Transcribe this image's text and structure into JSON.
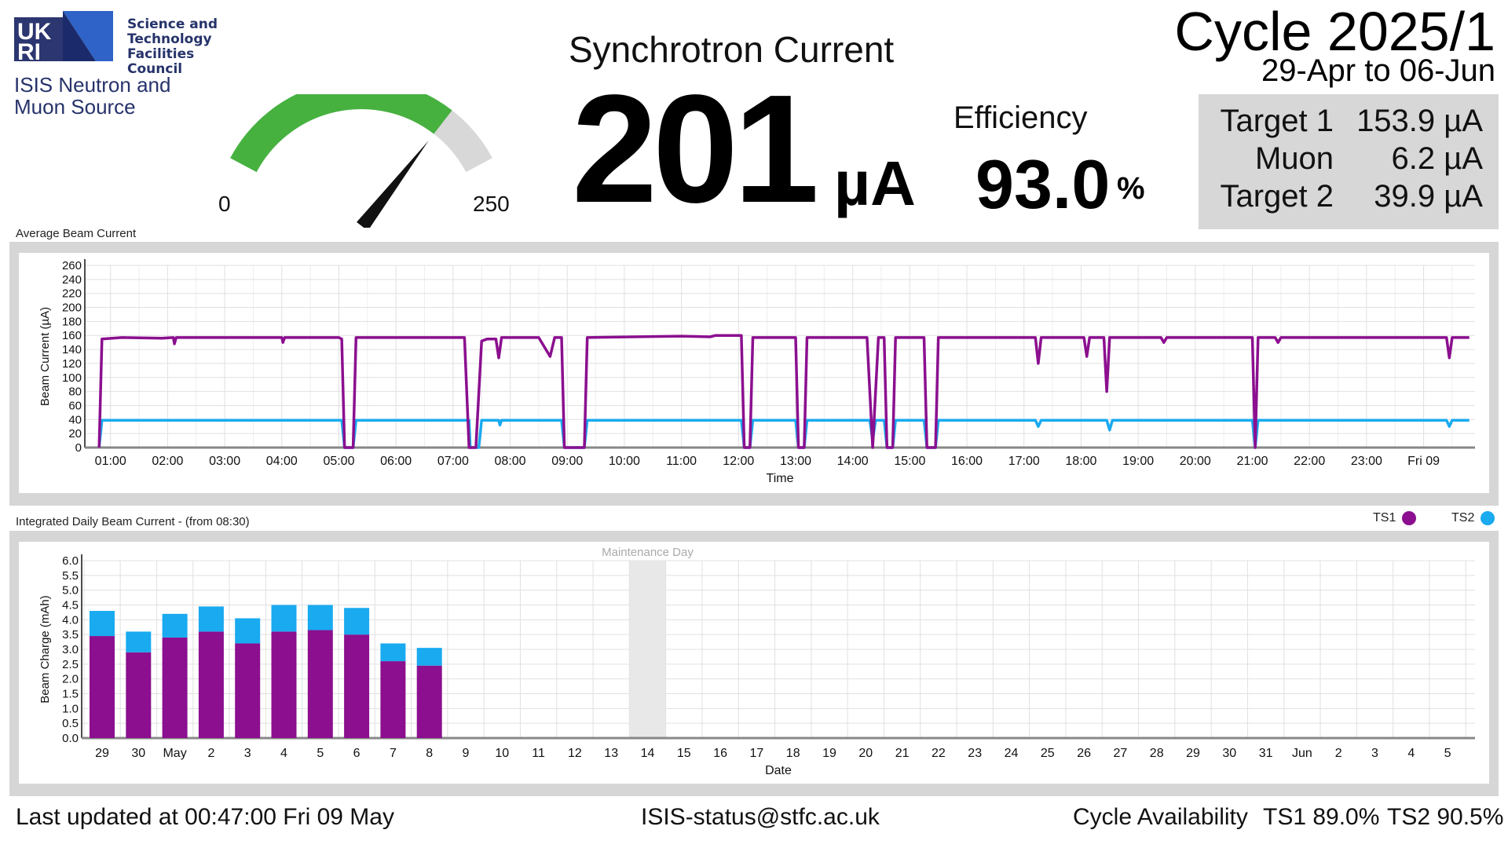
{
  "logo": {
    "ukri_letters": [
      "UK",
      "RI"
    ],
    "council_lines": [
      "Science and",
      "Technology",
      "Facilities Council"
    ],
    "source_lines": [
      "ISIS Neutron and",
      "Muon Source"
    ]
  },
  "gauge": {
    "min_label": "0",
    "max_label": "250",
    "min": 0,
    "max": 250,
    "value": 201,
    "fill_color": "#46b13f",
    "track_color": "#d8d8d8"
  },
  "synchrotron": {
    "title": "Synchrotron Current",
    "value": "201",
    "unit": "µA"
  },
  "efficiency": {
    "title": "Efficiency",
    "value": "93.0",
    "unit": "%"
  },
  "cycle": {
    "title": "Cycle 2025/1",
    "dates": "29-Apr to 06-Jun"
  },
  "targets": [
    {
      "name": "Target 1",
      "value": "153.9 µA"
    },
    {
      "name": "Muon",
      "value": "6.2 µA"
    },
    {
      "name": "Target 2",
      "value": "39.9 µA"
    }
  ],
  "average_chart": {
    "label": "Average Beam Current",
    "ylabel": "Beam Current (µA)",
    "xlabel": "Time",
    "yticks": [
      "0",
      "20",
      "40",
      "60",
      "80",
      "100",
      "120",
      "140",
      "160",
      "180",
      "200",
      "220",
      "240",
      "260"
    ],
    "xticks": [
      "01:00",
      "02:00",
      "03:00",
      "04:00",
      "05:00",
      "06:00",
      "07:00",
      "08:00",
      "09:00",
      "10:00",
      "11:00",
      "12:00",
      "13:00",
      "14:00",
      "15:00",
      "16:00",
      "17:00",
      "18:00",
      "19:00",
      "20:00",
      "21:00",
      "22:00",
      "23:00",
      "Fri 09"
    ]
  },
  "daily_chart": {
    "label": "Integrated Daily Beam Current - (from 08:30)",
    "ylabel": "Beam Charge (mAh)",
    "xlabel": "Date",
    "maintenance_label": "Maintenance Day",
    "yticks": [
      "0.0",
      "0.5",
      "1.0",
      "1.5",
      "2.0",
      "2.5",
      "3.0",
      "3.5",
      "4.0",
      "4.5",
      "5.0",
      "5.5",
      "6.0"
    ],
    "xticks": [
      "29",
      "30",
      "May",
      "2",
      "3",
      "4",
      "5",
      "6",
      "7",
      "8",
      "9",
      "10",
      "11",
      "12",
      "13",
      "14",
      "15",
      "16",
      "17",
      "18",
      "19",
      "20",
      "21",
      "22",
      "23",
      "24",
      "25",
      "26",
      "27",
      "28",
      "29",
      "30",
      "31",
      "Jun",
      "2",
      "3",
      "4",
      "5"
    ]
  },
  "legend": {
    "ts1": "TS1",
    "ts2": "TS2",
    "ts1_color": "#8b0f8f",
    "ts2_color": "#19aaf0"
  },
  "chart_data": [
    {
      "type": "line",
      "title": "Average Beam Current",
      "xlabel": "Time",
      "ylabel": "Beam Current (µA)",
      "ylim": [
        0,
        260
      ],
      "x_unit": "hours since 00:00 Thu 08 May",
      "series": [
        {
          "name": "TS1",
          "color": "#8b0f8f",
          "points": [
            [
              0.8,
              0
            ],
            [
              0.85,
              155
            ],
            [
              1.2,
              157
            ],
            [
              1.9,
              156
            ],
            [
              2.1,
              157
            ],
            [
              2.12,
              148
            ],
            [
              2.15,
              157
            ],
            [
              4.0,
              157
            ],
            [
              4.02,
              150
            ],
            [
              4.05,
              157
            ],
            [
              5.0,
              157
            ],
            [
              5.05,
              155
            ],
            [
              5.1,
              0
            ],
            [
              5.25,
              0
            ],
            [
              5.3,
              157
            ],
            [
              7.2,
              157
            ],
            [
              7.28,
              0
            ],
            [
              7.4,
              0
            ],
            [
              7.5,
              152
            ],
            [
              7.6,
              155
            ],
            [
              7.75,
              155
            ],
            [
              7.8,
              128
            ],
            [
              7.85,
              157
            ],
            [
              8.5,
              157
            ],
            [
              8.7,
              130
            ],
            [
              8.78,
              157
            ],
            [
              8.9,
              157
            ],
            [
              8.95,
              0
            ],
            [
              9.3,
              0
            ],
            [
              9.35,
              157
            ],
            [
              11.0,
              159
            ],
            [
              11.5,
              158
            ],
            [
              11.6,
              160
            ],
            [
              12.05,
              160
            ],
            [
              12.1,
              0
            ],
            [
              12.2,
              0
            ],
            [
              12.25,
              157
            ],
            [
              13.0,
              157
            ],
            [
              13.05,
              0
            ],
            [
              13.15,
              0
            ],
            [
              13.2,
              157
            ],
            [
              14.25,
              157
            ],
            [
              14.35,
              0
            ],
            [
              14.45,
              157
            ],
            [
              14.55,
              157
            ],
            [
              14.6,
              0
            ],
            [
              14.7,
              0
            ],
            [
              14.75,
              157
            ],
            [
              15.25,
              157
            ],
            [
              15.3,
              0
            ],
            [
              15.45,
              0
            ],
            [
              15.5,
              157
            ],
            [
              17.2,
              157
            ],
            [
              17.25,
              120
            ],
            [
              17.3,
              157
            ],
            [
              18.05,
              157
            ],
            [
              18.1,
              130
            ],
            [
              18.15,
              157
            ],
            [
              18.4,
              157
            ],
            [
              18.45,
              80
            ],
            [
              18.5,
              157
            ],
            [
              19.4,
              157
            ],
            [
              19.45,
              150
            ],
            [
              19.5,
              157
            ],
            [
              21.0,
              157
            ],
            [
              21.05,
              0
            ],
            [
              21.1,
              157
            ],
            [
              21.4,
              157
            ],
            [
              21.45,
              150
            ],
            [
              21.5,
              157
            ],
            [
              24.4,
              157
            ],
            [
              24.45,
              128
            ],
            [
              24.5,
              157
            ],
            [
              24.8,
              157
            ]
          ]
        },
        {
          "name": "TS2",
          "color": "#19aaf0",
          "points": [
            [
              0.8,
              0
            ],
            [
              0.85,
              39
            ],
            [
              5.05,
              39
            ],
            [
              5.1,
              0
            ],
            [
              5.25,
              0
            ],
            [
              5.3,
              39
            ],
            [
              7.28,
              39
            ],
            [
              7.3,
              0
            ],
            [
              7.45,
              0
            ],
            [
              7.5,
              39
            ],
            [
              7.8,
              39
            ],
            [
              7.82,
              32
            ],
            [
              7.85,
              39
            ],
            [
              8.9,
              39
            ],
            [
              8.95,
              0
            ],
            [
              9.3,
              0
            ],
            [
              9.35,
              39
            ],
            [
              12.05,
              39
            ],
            [
              12.1,
              0
            ],
            [
              12.2,
              0
            ],
            [
              12.25,
              39
            ],
            [
              13.0,
              39
            ],
            [
              13.05,
              0
            ],
            [
              13.15,
              0
            ],
            [
              13.2,
              39
            ],
            [
              14.3,
              39
            ],
            [
              14.35,
              10
            ],
            [
              14.4,
              39
            ],
            [
              14.55,
              39
            ],
            [
              14.6,
              0
            ],
            [
              14.7,
              0
            ],
            [
              14.75,
              39
            ],
            [
              15.25,
              39
            ],
            [
              15.3,
              0
            ],
            [
              15.45,
              0
            ],
            [
              15.5,
              39
            ],
            [
              17.2,
              39
            ],
            [
              17.25,
              30
            ],
            [
              17.3,
              39
            ],
            [
              18.45,
              39
            ],
            [
              18.5,
              25
            ],
            [
              18.55,
              39
            ],
            [
              21.0,
              39
            ],
            [
              21.05,
              0
            ],
            [
              21.1,
              39
            ],
            [
              24.4,
              39
            ],
            [
              24.45,
              30
            ],
            [
              24.5,
              39
            ],
            [
              24.8,
              39
            ]
          ]
        }
      ]
    },
    {
      "type": "bar",
      "stacked": true,
      "title": "Integrated Daily Beam Current - (from 08:30)",
      "xlabel": "Date",
      "ylabel": "Beam Charge (mAh)",
      "ylim": [
        0,
        6.0
      ],
      "categories": [
        "29",
        "30",
        "May",
        "2",
        "3",
        "4",
        "5",
        "6",
        "7",
        "8"
      ],
      "series": [
        {
          "name": "TS1",
          "color": "#8b0f8f",
          "values": [
            3.45,
            2.9,
            3.4,
            3.6,
            3.2,
            3.6,
            3.65,
            3.5,
            2.6,
            2.45
          ]
        },
        {
          "name": "TS2",
          "color": "#19aaf0",
          "values": [
            0.85,
            0.7,
            0.8,
            0.85,
            0.85,
            0.9,
            0.85,
            0.9,
            0.6,
            0.6
          ]
        }
      ],
      "maintenance_category": "14"
    }
  ],
  "footer": {
    "updated": "Last updated at 00:47:00 Fri 09 May",
    "email": "ISIS-status@stfc.ac.uk",
    "availability_label": "Cycle Availability",
    "ts1_availability": "TS1 89.0%",
    "ts2_availability": "TS2 90.5%"
  }
}
